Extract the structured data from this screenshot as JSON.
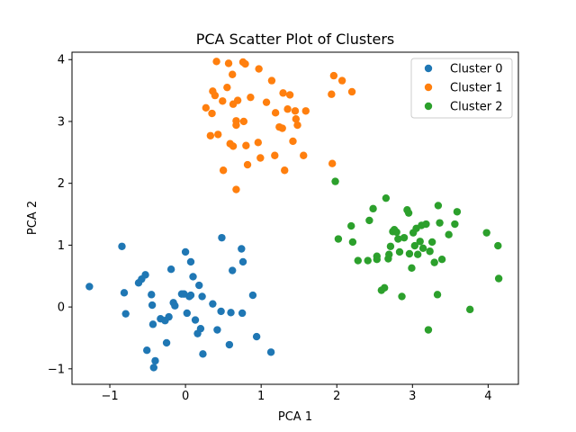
{
  "chart_data": {
    "type": "scatter",
    "title": "PCA Scatter Plot of Clusters",
    "xlabel": "PCA 1",
    "ylabel": "PCA 2",
    "xlim": [
      -1.5,
      4.4
    ],
    "ylim": [
      -1.25,
      4.12
    ],
    "xticks": [
      -1,
      0,
      1,
      2,
      3,
      4
    ],
    "yticks": [
      -1,
      0,
      1,
      2,
      3,
      4
    ],
    "xtick_labels": [
      "−1",
      "0",
      "1",
      "2",
      "3",
      "4"
    ],
    "ytick_labels": [
      "−1",
      "0",
      "1",
      "2",
      "3",
      "4"
    ],
    "grid": false,
    "legend_position": "top-right",
    "series": [
      {
        "name": "Cluster 0",
        "color": "#1f77b4",
        "points": [
          [
            -1.27,
            0.33
          ],
          [
            -0.84,
            0.98
          ],
          [
            -0.81,
            0.23
          ],
          [
            -0.79,
            -0.11
          ],
          [
            -0.62,
            0.39
          ],
          [
            -0.58,
            0.45
          ],
          [
            -0.53,
            0.52
          ],
          [
            -0.51,
            -0.7
          ],
          [
            -0.45,
            0.2
          ],
          [
            -0.44,
            0.03
          ],
          [
            -0.43,
            -0.28
          ],
          [
            -0.42,
            -0.98
          ],
          [
            -0.4,
            -0.87
          ],
          [
            -0.33,
            -0.19
          ],
          [
            -0.27,
            -0.22
          ],
          [
            -0.25,
            -0.58
          ],
          [
            -0.22,
            -0.16
          ],
          [
            -0.19,
            0.61
          ],
          [
            -0.16,
            0.07
          ],
          [
            -0.14,
            0.02
          ],
          [
            -0.05,
            0.21
          ],
          [
            -0.02,
            0.21
          ],
          [
            0.0,
            0.89
          ],
          [
            0.02,
            -0.1
          ],
          [
            0.05,
            0.17
          ],
          [
            0.07,
            0.19
          ],
          [
            0.07,
            0.73
          ],
          [
            0.1,
            0.49
          ],
          [
            0.13,
            -0.21
          ],
          [
            0.16,
            -0.43
          ],
          [
            0.18,
            0.35
          ],
          [
            0.2,
            -0.35
          ],
          [
            0.22,
            0.17
          ],
          [
            0.23,
            -0.76
          ],
          [
            0.36,
            0.05
          ],
          [
            0.42,
            -0.37
          ],
          [
            0.47,
            -0.07
          ],
          [
            0.48,
            1.12
          ],
          [
            0.58,
            -0.61
          ],
          [
            0.6,
            -0.09
          ],
          [
            0.62,
            0.59
          ],
          [
            0.74,
            0.94
          ],
          [
            0.75,
            -0.1
          ],
          [
            0.76,
            0.73
          ],
          [
            0.89,
            0.19
          ],
          [
            0.94,
            -0.48
          ],
          [
            1.13,
            -0.73
          ]
        ]
      },
      {
        "name": "Cluster 1",
        "color": "#ff7f0e",
        "points": [
          [
            0.27,
            3.22
          ],
          [
            0.33,
            2.77
          ],
          [
            0.35,
            3.13
          ],
          [
            0.36,
            3.49
          ],
          [
            0.39,
            3.42
          ],
          [
            0.41,
            3.97
          ],
          [
            0.43,
            2.79
          ],
          [
            0.49,
            3.33
          ],
          [
            0.5,
            2.21
          ],
          [
            0.55,
            3.55
          ],
          [
            0.57,
            3.94
          ],
          [
            0.59,
            2.64
          ],
          [
            0.62,
            3.76
          ],
          [
            0.63,
            2.6
          ],
          [
            0.63,
            3.28
          ],
          [
            0.67,
            2.94
          ],
          [
            0.67,
            3.01
          ],
          [
            0.67,
            1.9
          ],
          [
            0.69,
            3.34
          ],
          [
            0.76,
            3.96
          ],
          [
            0.77,
            3.0
          ],
          [
            0.79,
            3.93
          ],
          [
            0.8,
            2.61
          ],
          [
            0.82,
            2.3
          ],
          [
            0.86,
            3.39
          ],
          [
            0.96,
            2.66
          ],
          [
            0.97,
            3.85
          ],
          [
            0.99,
            2.41
          ],
          [
            1.07,
            3.31
          ],
          [
            1.14,
            3.66
          ],
          [
            1.18,
            2.45
          ],
          [
            1.19,
            3.14
          ],
          [
            1.24,
            2.91
          ],
          [
            1.28,
            2.89
          ],
          [
            1.29,
            3.46
          ],
          [
            1.31,
            2.21
          ],
          [
            1.35,
            3.2
          ],
          [
            1.38,
            3.43
          ],
          [
            1.42,
            2.68
          ],
          [
            1.45,
            3.17
          ],
          [
            1.46,
            3.04
          ],
          [
            1.48,
            2.94
          ],
          [
            1.56,
            2.45
          ],
          [
            1.59,
            3.17
          ],
          [
            1.93,
            3.44
          ],
          [
            1.94,
            2.32
          ],
          [
            1.96,
            3.74
          ],
          [
            2.07,
            3.66
          ],
          [
            2.2,
            3.48
          ]
        ]
      },
      {
        "name": "Cluster 2",
        "color": "#2ca02c",
        "points": [
          [
            1.98,
            2.03
          ],
          [
            2.02,
            1.1
          ],
          [
            2.19,
            1.31
          ],
          [
            2.21,
            1.05
          ],
          [
            2.28,
            0.75
          ],
          [
            2.41,
            0.75
          ],
          [
            2.43,
            1.4
          ],
          [
            2.48,
            1.59
          ],
          [
            2.53,
            0.77
          ],
          [
            2.53,
            0.82
          ],
          [
            2.59,
            0.27
          ],
          [
            2.63,
            0.31
          ],
          [
            2.65,
            1.76
          ],
          [
            2.68,
            0.78
          ],
          [
            2.69,
            0.85
          ],
          [
            2.71,
            0.98
          ],
          [
            2.74,
            1.22
          ],
          [
            2.76,
            1.25
          ],
          [
            2.79,
            1.21
          ],
          [
            2.81,
            1.1
          ],
          [
            2.83,
            0.89
          ],
          [
            2.86,
            0.17
          ],
          [
            2.89,
            1.12
          ],
          [
            2.93,
            1.57
          ],
          [
            2.95,
            1.52
          ],
          [
            2.96,
            0.86
          ],
          [
            2.99,
            0.63
          ],
          [
            3.01,
            1.2
          ],
          [
            3.03,
            0.99
          ],
          [
            3.05,
            1.27
          ],
          [
            3.07,
            0.85
          ],
          [
            3.1,
            1.06
          ],
          [
            3.12,
            1.32
          ],
          [
            3.14,
            0.95
          ],
          [
            3.18,
            1.34
          ],
          [
            3.21,
            -0.37
          ],
          [
            3.23,
            0.9
          ],
          [
            3.26,
            1.05
          ],
          [
            3.29,
            0.72
          ],
          [
            3.33,
            0.2
          ],
          [
            3.34,
            1.64
          ],
          [
            3.36,
            1.36
          ],
          [
            3.39,
            0.77
          ],
          [
            3.48,
            1.17
          ],
          [
            3.56,
            1.34
          ],
          [
            3.59,
            1.54
          ],
          [
            3.76,
            -0.04
          ],
          [
            3.98,
            1.2
          ],
          [
            4.13,
            0.99
          ],
          [
            4.14,
            0.46
          ]
        ]
      }
    ]
  }
}
